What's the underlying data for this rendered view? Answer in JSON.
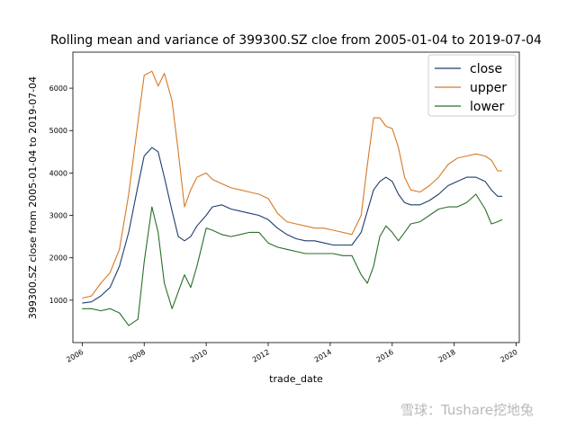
{
  "chart_data": {
    "type": "line",
    "title": "Rolling mean and variance of 399300.SZ cloe from 2005-01-04 to 2019-07-04",
    "xlabel": "trade_date",
    "ylabel": "399300.SZ close from 2005-01-04 to 2019-07-04",
    "xlim": [
      2005.7,
      2020.1
    ],
    "ylim": [
      0,
      6850
    ],
    "x_ticks": [
      2006,
      2008,
      2010,
      2012,
      2014,
      2016,
      2018,
      2020
    ],
    "y_ticks": [
      1000,
      2000,
      3000,
      4000,
      5000,
      6000
    ],
    "legend_position": "top-right",
    "grid": false,
    "x": [
      2006.0,
      2006.3,
      2006.6,
      2006.9,
      2007.2,
      2007.5,
      2007.8,
      2008.0,
      2008.25,
      2008.45,
      2008.65,
      2008.9,
      2009.1,
      2009.3,
      2009.5,
      2009.7,
      2010.0,
      2010.2,
      2010.5,
      2010.8,
      2011.1,
      2011.4,
      2011.7,
      2012.0,
      2012.3,
      2012.6,
      2012.9,
      2013.2,
      2013.5,
      2013.8,
      2014.1,
      2014.4,
      2014.7,
      2015.0,
      2015.2,
      2015.4,
      2015.6,
      2015.8,
      2016.0,
      2016.2,
      2016.4,
      2016.6,
      2016.9,
      2017.2,
      2017.5,
      2017.8,
      2018.1,
      2018.4,
      2018.7,
      2019.0,
      2019.2,
      2019.4,
      2019.55
    ],
    "series": [
      {
        "name": "close",
        "color": "#1f3d6e",
        "values": [
          930,
          960,
          1100,
          1300,
          1800,
          2600,
          3700,
          4400,
          4600,
          4500,
          3900,
          3100,
          2500,
          2400,
          2500,
          2750,
          3000,
          3200,
          3250,
          3150,
          3100,
          3050,
          3000,
          2900,
          2700,
          2550,
          2450,
          2400,
          2400,
          2350,
          2300,
          2300,
          2300,
          2600,
          3100,
          3600,
          3800,
          3900,
          3800,
          3500,
          3300,
          3250,
          3250,
          3350,
          3500,
          3700,
          3800,
          3900,
          3900,
          3800,
          3600,
          3450,
          3450
        ]
      },
      {
        "name": "upper",
        "color": "#d67a26",
        "values": [
          1050,
          1100,
          1400,
          1650,
          2200,
          3500,
          5200,
          6300,
          6400,
          6050,
          6350,
          5700,
          4500,
          3200,
          3600,
          3900,
          4000,
          3850,
          3750,
          3650,
          3600,
          3550,
          3500,
          3400,
          3050,
          2850,
          2800,
          2750,
          2700,
          2700,
          2650,
          2600,
          2550,
          3000,
          4200,
          5300,
          5300,
          5100,
          5050,
          4600,
          3900,
          3600,
          3550,
          3700,
          3900,
          4200,
          4350,
          4400,
          4450,
          4400,
          4300,
          4050,
          4050
        ]
      },
      {
        "name": "lower",
        "color": "#2a6e2a",
        "values": [
          800,
          800,
          750,
          800,
          700,
          400,
          550,
          1900,
          3200,
          2600,
          1400,
          800,
          1200,
          1600,
          1300,
          1800,
          2700,
          2650,
          2550,
          2500,
          2550,
          2600,
          2600,
          2350,
          2250,
          2200,
          2150,
          2100,
          2100,
          2100,
          2100,
          2050,
          2050,
          1600,
          1400,
          1800,
          2500,
          2750,
          2600,
          2400,
          2600,
          2800,
          2850,
          3000,
          3150,
          3200,
          3200,
          3300,
          3500,
          3150,
          2800,
          2850,
          2900
        ]
      }
    ]
  },
  "watermark": "雪球：Tushare挖地兔"
}
